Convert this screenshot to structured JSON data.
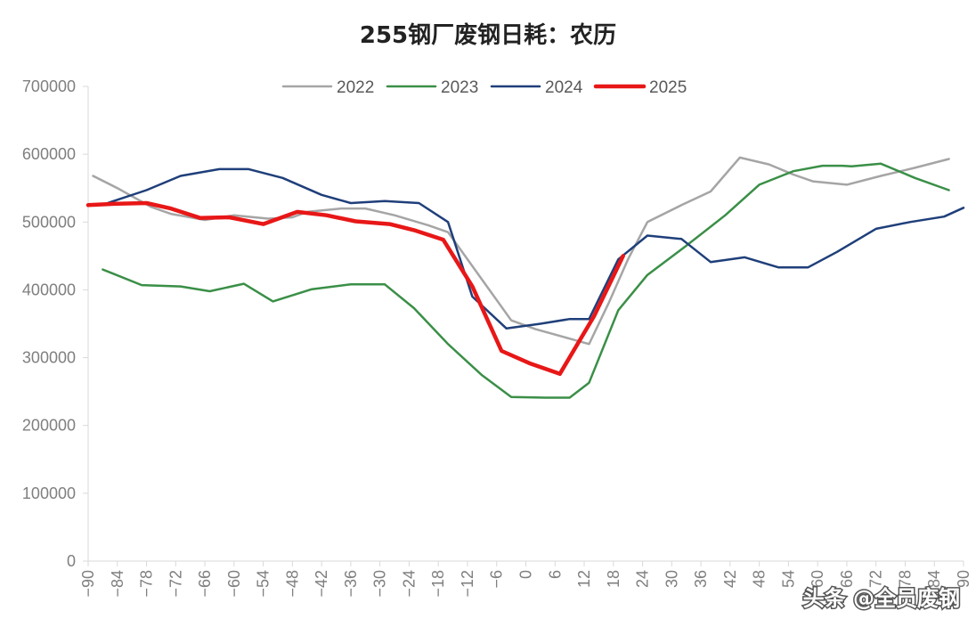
{
  "chart_data": {
    "type": "line",
    "title": "255钢厂废钢日耗：农历",
    "xlabel": "",
    "ylabel": "",
    "xlim": [
      -90,
      90
    ],
    "ylim": [
      0,
      700000
    ],
    "x_ticks": [
      -90,
      -84,
      -78,
      -72,
      -66,
      -60,
      -54,
      -48,
      -42,
      -36,
      -30,
      -24,
      -18,
      -12,
      -6,
      0,
      6,
      12,
      18,
      24,
      30,
      36,
      42,
      48,
      54,
      60,
      66,
      72,
      78,
      84,
      90
    ],
    "y_ticks": [
      0,
      100000,
      200000,
      300000,
      400000,
      500000,
      600000,
      700000
    ],
    "grid": false,
    "legend_position": "top",
    "series": [
      {
        "name": "2022",
        "color": "#a5a5a5",
        "width": 2.5,
        "points": [
          [
            -89,
            568000
          ],
          [
            -84,
            550000
          ],
          [
            -77,
            522000
          ],
          [
            -73,
            512000
          ],
          [
            -66,
            503000
          ],
          [
            -60,
            510000
          ],
          [
            -53,
            505000
          ],
          [
            -48,
            507000
          ],
          [
            -45,
            515000
          ],
          [
            -38,
            520000
          ],
          [
            -33,
            520000
          ],
          [
            -27,
            510000
          ],
          [
            -20,
            495000
          ],
          [
            -16,
            485000
          ],
          [
            -8,
            405000
          ],
          [
            -3,
            355000
          ],
          [
            2,
            342000
          ],
          [
            8,
            330000
          ],
          [
            13,
            320000
          ],
          [
            17,
            380000
          ],
          [
            21,
            445000
          ],
          [
            25,
            500000
          ],
          [
            32,
            525000
          ],
          [
            38,
            545000
          ],
          [
            44,
            595000
          ],
          [
            50,
            585000
          ],
          [
            55,
            570000
          ],
          [
            59,
            560000
          ],
          [
            66,
            555000
          ],
          [
            73,
            568000
          ],
          [
            80,
            580000
          ],
          [
            87,
            593000
          ]
        ]
      },
      {
        "name": "2023",
        "color": "#3a8f47",
        "width": 2.5,
        "points": [
          [
            -87,
            430000
          ],
          [
            -79,
            407000
          ],
          [
            -71,
            405000
          ],
          [
            -65,
            398000
          ],
          [
            -58,
            409000
          ],
          [
            -52,
            383000
          ],
          [
            -44,
            401000
          ],
          [
            -36,
            408000
          ],
          [
            -29,
            408000
          ],
          [
            -23,
            373000
          ],
          [
            -16,
            320000
          ],
          [
            -9,
            274000
          ],
          [
            -3,
            242000
          ],
          [
            4,
            241000
          ],
          [
            9,
            241000
          ],
          [
            13,
            263000
          ],
          [
            19,
            370000
          ],
          [
            25,
            422000
          ],
          [
            33,
            465000
          ],
          [
            41,
            510000
          ],
          [
            48,
            555000
          ],
          [
            55,
            575000
          ],
          [
            61,
            583000
          ],
          [
            65,
            583000
          ],
          [
            67,
            582000
          ],
          [
            73,
            586000
          ],
          [
            80,
            565000
          ],
          [
            87,
            547000
          ]
        ]
      },
      {
        "name": "2024",
        "color": "#1f3f7a",
        "width": 2.5,
        "points": [
          [
            -86,
            528000
          ],
          [
            -78,
            547000
          ],
          [
            -71,
            568000
          ],
          [
            -63,
            578000
          ],
          [
            -57,
            578000
          ],
          [
            -50,
            565000
          ],
          [
            -42,
            540000
          ],
          [
            -36,
            528000
          ],
          [
            -29,
            531000
          ],
          [
            -22,
            528000
          ],
          [
            -16,
            500000
          ],
          [
            -11,
            390000
          ],
          [
            -4,
            343000
          ],
          [
            3,
            350000
          ],
          [
            9,
            357000
          ],
          [
            13,
            357000
          ],
          [
            19,
            445000
          ],
          [
            25,
            480000
          ],
          [
            32,
            475000
          ],
          [
            38,
            441000
          ],
          [
            45,
            448000
          ],
          [
            52,
            433000
          ],
          [
            58,
            433000
          ],
          [
            64,
            456000
          ],
          [
            72,
            490000
          ],
          [
            79,
            500000
          ],
          [
            86,
            508000
          ],
          [
            90,
            521000
          ]
        ]
      },
      {
        "name": "2025",
        "color": "#e81717",
        "width": 4.5,
        "points": [
          [
            -90,
            525000
          ],
          [
            -84,
            527000
          ],
          [
            -78,
            528000
          ],
          [
            -73,
            520000
          ],
          [
            -67,
            506000
          ],
          [
            -61,
            507000
          ],
          [
            -54,
            497000
          ],
          [
            -47,
            515000
          ],
          [
            -41,
            510000
          ],
          [
            -35,
            501000
          ],
          [
            -28,
            497000
          ],
          [
            -23,
            488000
          ],
          [
            -17,
            474000
          ],
          [
            -11,
            405000
          ],
          [
            -5,
            310000
          ],
          [
            1,
            291000
          ],
          [
            7,
            276000
          ],
          [
            14,
            361000
          ],
          [
            20,
            450000
          ]
        ]
      }
    ]
  },
  "watermark": {
    "text": "头条 @全员废钢"
  }
}
